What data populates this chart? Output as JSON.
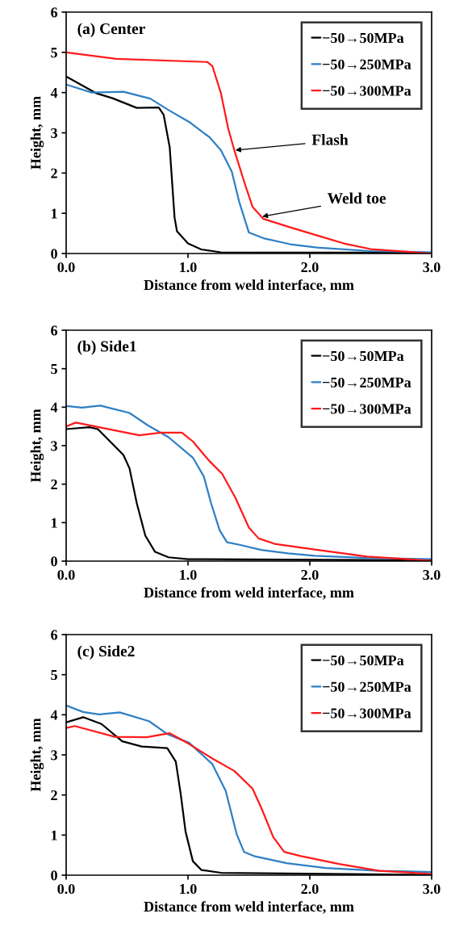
{
  "chart_data": [
    {
      "type": "line",
      "title": "(a) Center",
      "xlabel": "Distance from weld interface, mm",
      "ylabel": "Height, mm",
      "xlim": [
        0,
        3
      ],
      "xticks": [
        {
          "value": 0,
          "label": "0.0"
        },
        {
          "value": 1,
          "label": "1.0"
        },
        {
          "value": 2,
          "label": "2.0"
        },
        {
          "value": 3,
          "label": "3.0"
        }
      ],
      "ylim": [
        0,
        6
      ],
      "yticks": [
        0,
        1,
        2,
        3,
        4,
        5,
        6
      ],
      "grid": false,
      "legend": "top right",
      "marker": "none",
      "line_style": "solid",
      "annotations": [
        {
          "text": "Flash",
          "x": 1.39,
          "y": 2.57
        },
        {
          "text": "Weld toe",
          "x": 1.61,
          "y": 0.92
        }
      ],
      "series": [
        {
          "name": "−50→50MPa",
          "color": "#000000",
          "x": [
            0,
            0.25,
            0.38,
            0.58,
            0.76,
            0.8,
            0.85,
            0.89,
            0.91,
            1.0,
            1.11,
            1.27,
            3.0
          ],
          "values": [
            4.4,
            3.98,
            3.86,
            3.62,
            3.63,
            3.45,
            2.64,
            0.89,
            0.55,
            0.25,
            0.1,
            0.03,
            0.02
          ]
        },
        {
          "name": "−50→250MPa",
          "color": "#2e7fc4",
          "x": [
            0,
            0.21,
            0.47,
            0.69,
            0.85,
            1.02,
            1.18,
            1.27,
            1.36,
            1.42,
            1.5,
            1.62,
            1.84,
            2.06,
            2.5,
            3.0
          ],
          "values": [
            4.2,
            4.0,
            4.02,
            3.85,
            3.55,
            3.25,
            2.88,
            2.57,
            2.03,
            1.29,
            0.52,
            0.38,
            0.23,
            0.15,
            0.06,
            0.03
          ]
        },
        {
          "name": "−50→300MPa",
          "color": "#ff1a1a",
          "x": [
            0,
            0.41,
            1.16,
            1.2,
            1.27,
            1.33,
            1.38,
            1.47,
            1.53,
            1.62,
            1.84,
            2.06,
            2.28,
            2.5,
            3.0
          ],
          "values": [
            5.0,
            4.84,
            4.76,
            4.66,
            3.99,
            3.11,
            2.57,
            1.7,
            1.16,
            0.86,
            0.65,
            0.45,
            0.25,
            0.11,
            0.0
          ]
        }
      ]
    },
    {
      "type": "line",
      "title": "(b) Side1",
      "xlabel": "Distance from weld interface, mm",
      "ylabel": "Height, mm",
      "xlim": [
        0,
        3
      ],
      "xticks": [
        {
          "value": 0,
          "label": "0.0"
        },
        {
          "value": 1,
          "label": "1.0"
        },
        {
          "value": 2,
          "label": "2.0"
        },
        {
          "value": 3,
          "label": "3.0"
        }
      ],
      "ylim": [
        0,
        6
      ],
      "yticks": [
        0,
        1,
        2,
        3,
        4,
        5,
        6
      ],
      "grid": false,
      "legend": "top right",
      "marker": "none",
      "line_style": "solid",
      "series": [
        {
          "name": "−50→50MPa",
          "color": "#000000",
          "x": [
            0,
            0.19,
            0.26,
            0.47,
            0.52,
            0.58,
            0.65,
            0.73,
            0.84,
            1.0,
            3.0
          ],
          "values": [
            3.43,
            3.48,
            3.43,
            2.76,
            2.41,
            1.5,
            0.66,
            0.24,
            0.1,
            0.05,
            0.02
          ]
        },
        {
          "name": "−50→250MPa",
          "color": "#2e7fc4",
          "x": [
            0,
            0.13,
            0.28,
            0.52,
            0.67,
            0.84,
            1.04,
            1.13,
            1.19,
            1.26,
            1.32,
            1.43,
            1.6,
            1.82,
            2.04,
            2.47,
            3.0
          ],
          "values": [
            4.03,
            3.99,
            4.04,
            3.85,
            3.53,
            3.22,
            2.69,
            2.2,
            1.5,
            0.8,
            0.49,
            0.42,
            0.29,
            0.2,
            0.14,
            0.08,
            0.05
          ]
        },
        {
          "name": "−50→300MPa",
          "color": "#ff1a1a",
          "x": [
            0,
            0.08,
            0.41,
            0.6,
            0.78,
            0.95,
            1.04,
            1.17,
            1.28,
            1.39,
            1.5,
            1.58,
            1.71,
            2.04,
            2.47,
            3.0
          ],
          "values": [
            3.5,
            3.6,
            3.39,
            3.27,
            3.34,
            3.34,
            3.11,
            2.62,
            2.27,
            1.64,
            0.87,
            0.59,
            0.45,
            0.3,
            0.12,
            0.01
          ]
        }
      ]
    },
    {
      "type": "line",
      "title": "(c) Side2",
      "xlabel": "Distance from weld interface, mm",
      "ylabel": "Height, mm",
      "xlim": [
        0,
        3
      ],
      "xticks": [
        {
          "value": 0,
          "label": "0.0"
        },
        {
          "value": 1,
          "label": "1.0"
        },
        {
          "value": 2,
          "label": "2.0"
        },
        {
          "value": 3,
          "label": "3.0"
        }
      ],
      "ylim": [
        0,
        6
      ],
      "yticks": [
        0,
        1,
        2,
        3,
        4,
        5,
        6
      ],
      "grid": false,
      "legend": "top right",
      "marker": "none",
      "line_style": "solid",
      "series": [
        {
          "name": "−50→50MPa",
          "color": "#000000",
          "x": [
            0,
            0.14,
            0.29,
            0.46,
            0.62,
            0.83,
            0.9,
            0.94,
            0.98,
            1.04,
            1.11,
            1.27,
            3.0
          ],
          "values": [
            3.81,
            3.94,
            3.77,
            3.34,
            3.21,
            3.17,
            2.83,
            2.03,
            1.09,
            0.35,
            0.13,
            0.06,
            0.01
          ]
        },
        {
          "name": "−50→250MPa",
          "color": "#2e7fc4",
          "x": [
            0,
            0.14,
            0.27,
            0.44,
            0.68,
            0.83,
            1.01,
            1.2,
            1.31,
            1.4,
            1.46,
            1.55,
            1.81,
            2.13,
            2.57,
            3.0
          ],
          "values": [
            4.23,
            4.07,
            4.01,
            4.06,
            3.84,
            3.52,
            3.3,
            2.77,
            2.1,
            1.02,
            0.58,
            0.47,
            0.3,
            0.18,
            0.11,
            0.08
          ]
        },
        {
          "name": "−50→300MPa",
          "color": "#ff1a1a",
          "x": [
            0,
            0.07,
            0.4,
            0.66,
            0.85,
            1.01,
            1.2,
            1.38,
            1.53,
            1.61,
            1.7,
            1.79,
            1.92,
            2.24,
            2.57,
            3.0
          ],
          "values": [
            3.67,
            3.72,
            3.45,
            3.44,
            3.54,
            3.27,
            2.91,
            2.6,
            2.16,
            1.62,
            0.95,
            0.58,
            0.48,
            0.28,
            0.11,
            0.03
          ]
        }
      ]
    }
  ]
}
